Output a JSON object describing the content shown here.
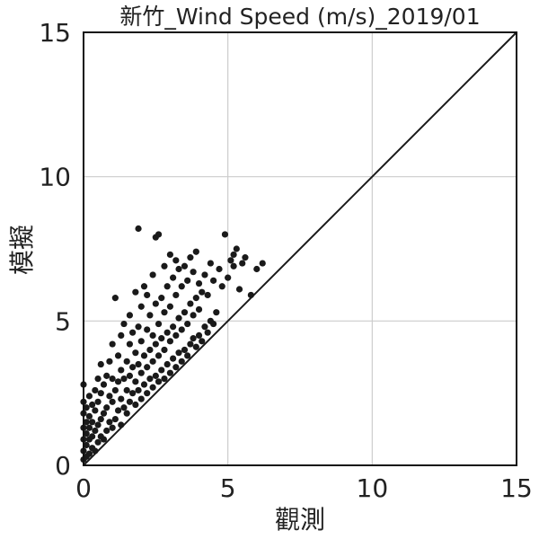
{
  "chart_data": {
    "type": "scatter",
    "title": "新竹_Wind Speed (m/s)_2019/01",
    "xlabel": "觀測",
    "ylabel": "模擬",
    "xlim": [
      0,
      15
    ],
    "ylim": [
      0,
      15
    ],
    "xticks": [
      0,
      5,
      10,
      15
    ],
    "yticks": [
      0,
      5,
      10,
      15
    ],
    "xtick_labels": [
      "0",
      "5",
      "10",
      "15"
    ],
    "ytick_labels": [
      "0",
      "5",
      "10",
      "15"
    ],
    "grid": true,
    "reference_line": {
      "type": "identity",
      "x": [
        0,
        15
      ],
      "y": [
        0,
        15
      ]
    },
    "colors": {
      "points": "#1a1a1a",
      "line": "#1a1a1a",
      "grid": "#cccccc",
      "frame": "#111111"
    },
    "series": [
      {
        "points": [
          [
            0.0,
            0.2
          ],
          [
            0.0,
            0.5
          ],
          [
            0.0,
            0.9
          ],
          [
            0.0,
            1.3
          ],
          [
            0.0,
            1.8
          ],
          [
            0.0,
            2.2
          ],
          [
            0.0,
            2.8
          ],
          [
            0.1,
            0.3
          ],
          [
            0.1,
            0.7
          ],
          [
            0.1,
            1.1
          ],
          [
            0.1,
            1.5
          ],
          [
            0.1,
            2.0
          ],
          [
            0.2,
            0.4
          ],
          [
            0.2,
            0.9
          ],
          [
            0.2,
            1.3
          ],
          [
            0.2,
            1.7
          ],
          [
            0.2,
            2.4
          ],
          [
            0.3,
            0.6
          ],
          [
            0.3,
            1.0
          ],
          [
            0.3,
            1.5
          ],
          [
            0.3,
            2.1
          ],
          [
            0.4,
            0.5
          ],
          [
            0.4,
            1.2
          ],
          [
            0.4,
            1.9
          ],
          [
            0.4,
            2.6
          ],
          [
            0.5,
            0.8
          ],
          [
            0.5,
            1.4
          ],
          [
            0.5,
            2.2
          ],
          [
            0.5,
            3.0
          ],
          [
            0.6,
            1.0
          ],
          [
            0.6,
            1.6
          ],
          [
            0.6,
            2.5
          ],
          [
            0.6,
            3.5
          ],
          [
            0.7,
            0.9
          ],
          [
            0.7,
            1.8
          ],
          [
            0.7,
            2.8
          ],
          [
            0.8,
            1.2
          ],
          [
            0.8,
            2.0
          ],
          [
            0.8,
            3.1
          ],
          [
            0.9,
            1.5
          ],
          [
            0.9,
            2.4
          ],
          [
            0.9,
            3.6
          ],
          [
            1.0,
            1.3
          ],
          [
            1.0,
            2.2
          ],
          [
            1.0,
            3.0
          ],
          [
            1.0,
            4.2
          ],
          [
            1.1,
            1.6
          ],
          [
            1.1,
            2.6
          ],
          [
            1.1,
            5.8
          ],
          [
            1.2,
            1.9
          ],
          [
            1.2,
            2.9
          ],
          [
            1.2,
            3.8
          ],
          [
            1.3,
            1.4
          ],
          [
            1.3,
            2.3
          ],
          [
            1.3,
            3.3
          ],
          [
            1.3,
            4.5
          ],
          [
            1.4,
            2.0
          ],
          [
            1.4,
            3.0
          ],
          [
            1.4,
            4.9
          ],
          [
            1.5,
            1.8
          ],
          [
            1.5,
            2.6
          ],
          [
            1.5,
            3.6
          ],
          [
            1.6,
            2.2
          ],
          [
            1.6,
            3.1
          ],
          [
            1.6,
            4.2
          ],
          [
            1.6,
            5.2
          ],
          [
            1.7,
            2.5
          ],
          [
            1.7,
            3.4
          ],
          [
            1.7,
            4.6
          ],
          [
            1.8,
            2.1
          ],
          [
            1.8,
            2.9
          ],
          [
            1.8,
            3.9
          ],
          [
            1.8,
            6.0
          ],
          [
            1.9,
            2.6
          ],
          [
            1.9,
            3.5
          ],
          [
            1.9,
            4.8
          ],
          [
            1.9,
            8.2
          ],
          [
            2.0,
            2.3
          ],
          [
            2.0,
            3.2
          ],
          [
            2.0,
            4.3
          ],
          [
            2.0,
            5.5
          ],
          [
            2.1,
            2.8
          ],
          [
            2.1,
            3.8
          ],
          [
            2.1,
            6.2
          ],
          [
            2.2,
            2.5
          ],
          [
            2.2,
            3.4
          ],
          [
            2.2,
            4.7
          ],
          [
            2.2,
            5.9
          ],
          [
            2.3,
            3.0
          ],
          [
            2.3,
            4.0
          ],
          [
            2.3,
            5.2
          ],
          [
            2.4,
            2.7
          ],
          [
            2.4,
            3.6
          ],
          [
            2.4,
            4.5
          ],
          [
            2.4,
            6.6
          ],
          [
            2.5,
            3.1
          ],
          [
            2.5,
            4.2
          ],
          [
            2.5,
            5.6
          ],
          [
            2.5,
            7.9
          ],
          [
            2.6,
            2.9
          ],
          [
            2.6,
            3.8
          ],
          [
            2.6,
            4.9
          ],
          [
            2.6,
            8.0
          ],
          [
            2.7,
            3.3
          ],
          [
            2.7,
            4.4
          ],
          [
            2.7,
            5.8
          ],
          [
            2.8,
            3.0
          ],
          [
            2.8,
            4.0
          ],
          [
            2.8,
            5.3
          ],
          [
            2.8,
            6.9
          ],
          [
            2.9,
            3.5
          ],
          [
            2.9,
            4.6
          ],
          [
            2.9,
            6.2
          ],
          [
            3.0,
            3.2
          ],
          [
            3.0,
            4.3
          ],
          [
            3.0,
            5.5
          ],
          [
            3.0,
            7.3
          ],
          [
            3.1,
            3.7
          ],
          [
            3.1,
            4.8
          ],
          [
            3.1,
            6.5
          ],
          [
            3.2,
            3.4
          ],
          [
            3.2,
            4.5
          ],
          [
            3.2,
            5.9
          ],
          [
            3.2,
            7.1
          ],
          [
            3.3,
            3.9
          ],
          [
            3.3,
            5.1
          ],
          [
            3.3,
            6.8
          ],
          [
            3.4,
            3.6
          ],
          [
            3.4,
            4.7
          ],
          [
            3.4,
            6.2
          ],
          [
            3.5,
            4.0
          ],
          [
            3.5,
            5.3
          ],
          [
            3.5,
            6.9
          ],
          [
            3.6,
            3.8
          ],
          [
            3.6,
            4.9
          ],
          [
            3.6,
            6.4
          ],
          [
            3.7,
            4.2
          ],
          [
            3.7,
            5.6
          ],
          [
            3.7,
            7.2
          ],
          [
            3.8,
            4.4
          ],
          [
            3.8,
            5.2
          ],
          [
            3.8,
            6.7
          ],
          [
            3.9,
            4.1
          ],
          [
            3.9,
            5.8
          ],
          [
            3.9,
            7.4
          ],
          [
            4.0,
            4.5
          ],
          [
            4.0,
            5.4
          ],
          [
            4.0,
            6.3
          ],
          [
            4.1,
            4.3
          ],
          [
            4.1,
            6.0
          ],
          [
            4.2,
            4.8
          ],
          [
            4.2,
            6.6
          ],
          [
            4.3,
            4.6
          ],
          [
            4.3,
            5.9
          ],
          [
            4.4,
            5.0
          ],
          [
            4.4,
            7.0
          ],
          [
            4.5,
            4.9
          ],
          [
            4.5,
            6.4
          ],
          [
            4.6,
            5.3
          ],
          [
            4.7,
            6.8
          ],
          [
            4.8,
            6.2
          ],
          [
            4.9,
            8.0
          ],
          [
            5.0,
            6.5
          ],
          [
            5.1,
            7.1
          ],
          [
            5.2,
            7.3
          ],
          [
            5.2,
            6.9
          ],
          [
            5.3,
            7.5
          ],
          [
            5.4,
            6.1
          ],
          [
            5.5,
            7.0
          ],
          [
            5.6,
            7.2
          ],
          [
            5.8,
            5.9
          ],
          [
            6.0,
            6.8
          ],
          [
            6.2,
            7.0
          ]
        ]
      }
    ]
  }
}
